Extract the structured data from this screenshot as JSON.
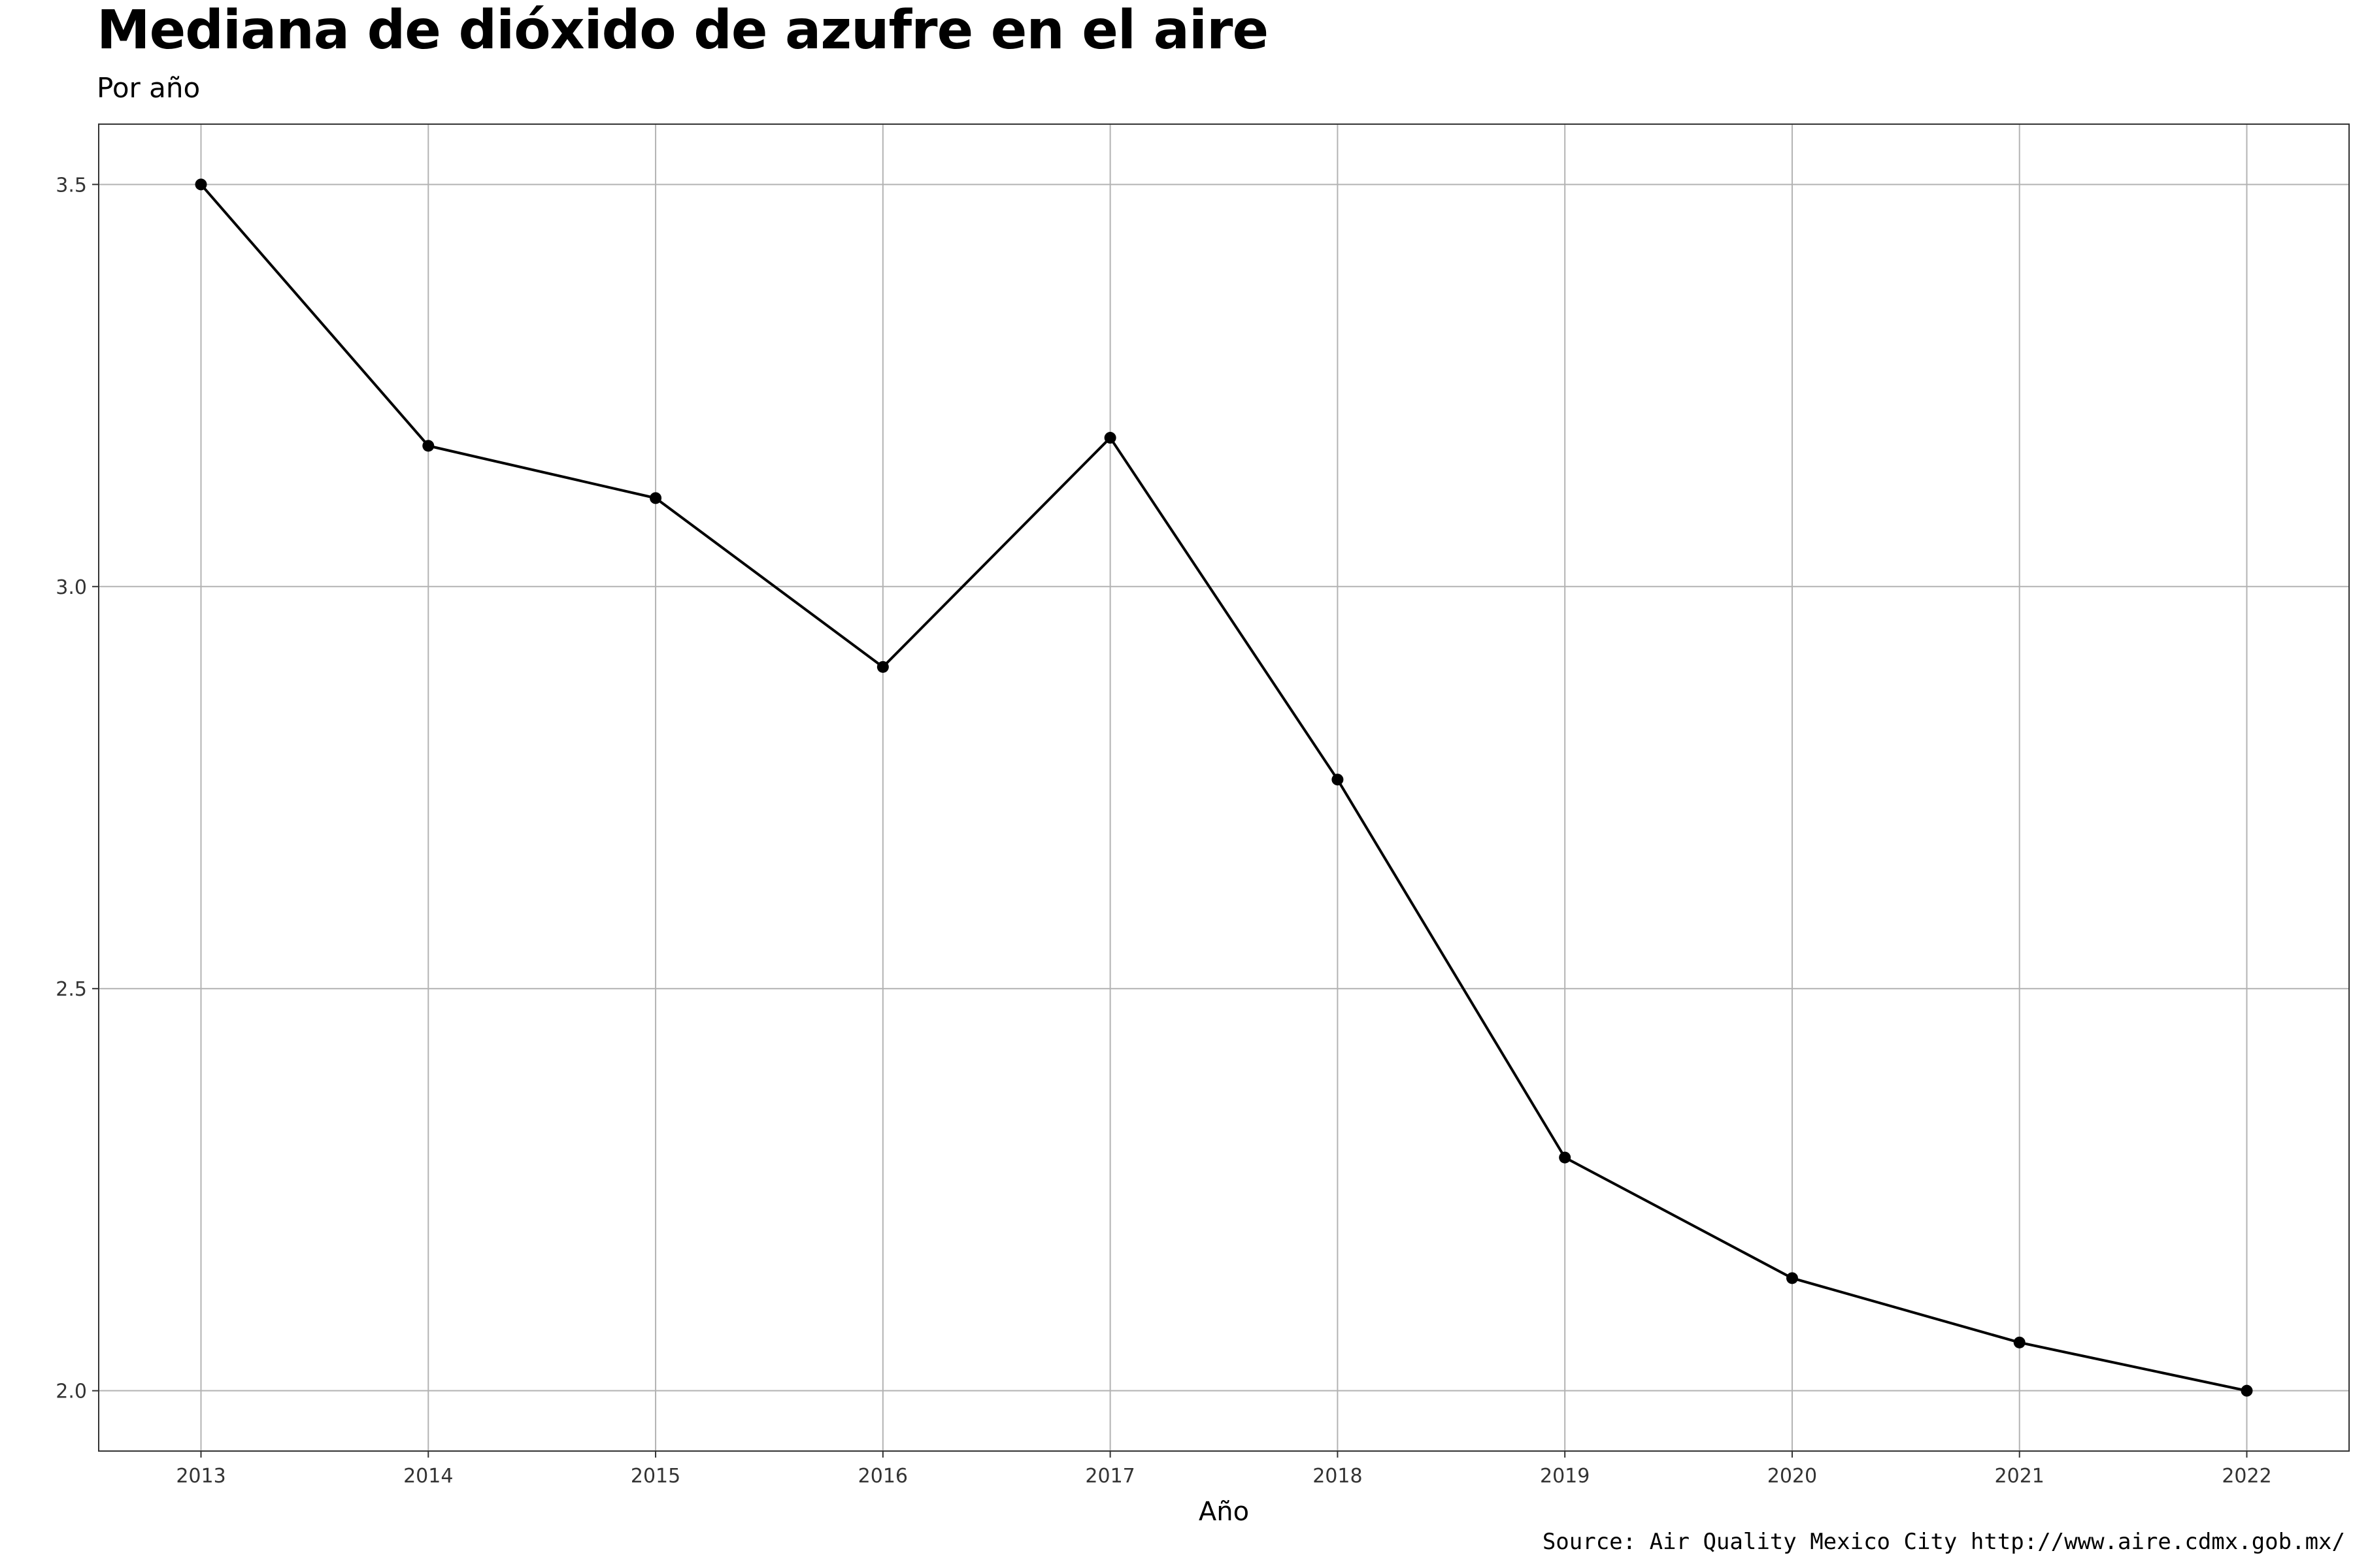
{
  "title": "Mediana de dióxido de azufre en el aire",
  "subtitle": "Por año",
  "caption": "Source: Air Quality Mexico City http://www.aire.cdmx.gob.mx/",
  "chart_data": {
    "type": "line",
    "title": "Mediana de dióxido de azufre en el aire",
    "subtitle": "Por año",
    "xlabel": "Año",
    "ylabel": "",
    "x": [
      2013,
      2014,
      2015,
      2016,
      2017,
      2018,
      2019,
      2020,
      2021,
      2022
    ],
    "series": [
      {
        "values": [
          3.5,
          3.175,
          3.11,
          2.9,
          3.185,
          2.76,
          2.29,
          2.14,
          2.06,
          2.0
        ]
      }
    ],
    "xlim": [
      2012.55,
      2022.45
    ],
    "ylim": [
      1.925,
      3.575
    ],
    "x_ticks": [
      "2013",
      "2014",
      "2015",
      "2016",
      "2017",
      "2018",
      "2019",
      "2020",
      "2021",
      "2022"
    ],
    "y_ticks": [
      "2.0",
      "2.5",
      "3.0",
      "3.5"
    ],
    "grid": true,
    "markers": true,
    "line_color": "#000000",
    "grid_color": "#b3b3b3",
    "border_color": "#333333"
  }
}
